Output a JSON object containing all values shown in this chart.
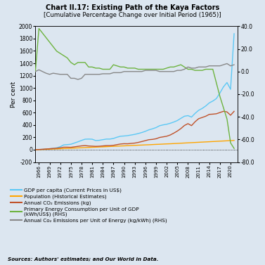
{
  "title_line1": "Chart II.17: Existing Path of the Kaya Factors",
  "title_line2": "[Cumulative Percentage Change over Initial Period (1965)]",
  "ylabel_left": "Per cent",
  "bg_color": "#dce6f0",
  "years": [
    1965,
    1966,
    1967,
    1968,
    1969,
    1970,
    1971,
    1972,
    1973,
    1974,
    1975,
    1976,
    1977,
    1978,
    1979,
    1980,
    1981,
    1982,
    1983,
    1984,
    1985,
    1986,
    1987,
    1988,
    1989,
    1990,
    1991,
    1992,
    1993,
    1994,
    1995,
    1996,
    1997,
    1998,
    1999,
    2000,
    2001,
    2002,
    2003,
    2004,
    2005,
    2006,
    2007,
    2008,
    2009,
    2010,
    2011,
    2012,
    2013,
    2014,
    2015,
    2016,
    2017,
    2018,
    2019,
    2020,
    2021
  ],
  "gdp_per_capita": [
    0,
    2,
    5,
    10,
    15,
    22,
    30,
    48,
    78,
    82,
    88,
    108,
    128,
    150,
    170,
    172,
    170,
    148,
    152,
    162,
    172,
    172,
    182,
    202,
    218,
    222,
    228,
    238,
    248,
    262,
    278,
    298,
    322,
    338,
    358,
    388,
    402,
    412,
    428,
    448,
    472,
    508,
    542,
    552,
    528,
    588,
    638,
    668,
    708,
    758,
    788,
    828,
    918,
    1018,
    1088,
    978,
    1880
  ],
  "population": [
    0,
    2,
    4,
    6,
    9,
    11,
    13,
    16,
    18,
    21,
    23,
    26,
    29,
    31,
    34,
    36,
    39,
    41,
    44,
    46,
    49,
    52,
    54,
    57,
    60,
    62,
    65,
    67,
    70,
    73,
    75,
    78,
    80,
    83,
    86,
    88,
    91,
    94,
    96,
    99,
    102,
    105,
    108,
    111,
    114,
    117,
    120,
    123,
    126,
    129,
    132,
    135,
    138,
    141,
    144,
    147,
    150
  ],
  "co2_emissions": [
    0,
    3,
    6,
    11,
    15,
    20,
    24,
    30,
    40,
    40,
    38,
    46,
    54,
    62,
    66,
    60,
    57,
    54,
    56,
    61,
    66,
    66,
    71,
    82,
    92,
    97,
    96,
    102,
    107,
    118,
    132,
    147,
    162,
    167,
    177,
    198,
    208,
    218,
    238,
    268,
    302,
    342,
    392,
    422,
    390,
    452,
    502,
    522,
    542,
    572,
    576,
    582,
    602,
    622,
    612,
    558,
    622
  ],
  "rhs_green": [
    0,
    38,
    34,
    30,
    26,
    22,
    18,
    16,
    14,
    12,
    8,
    6,
    8,
    8,
    8,
    4,
    4,
    3,
    3,
    2,
    2,
    2,
    6,
    5,
    4,
    4,
    3,
    3,
    3,
    2,
    2,
    2,
    2,
    2,
    2,
    2,
    2,
    3,
    4,
    4,
    5,
    6,
    4,
    2,
    2,
    1,
    1,
    1,
    2,
    2,
    2,
    -10,
    -22,
    -32,
    -42,
    -63,
    -68
  ],
  "rhs_gray": [
    0,
    1.5,
    0,
    -1.5,
    -2.5,
    -1.5,
    -2,
    -2.5,
    -2.5,
    -2.5,
    -6,
    -6,
    -7,
    -6,
    -2.5,
    -2.5,
    -2.5,
    -2.5,
    -2.5,
    -2,
    -2,
    -2,
    -1,
    -1,
    -1,
    0,
    0,
    0,
    0,
    0,
    0,
    1,
    1,
    1,
    1,
    0,
    0,
    0,
    0,
    0,
    1,
    1,
    2,
    4,
    3,
    3,
    4,
    4,
    4,
    5,
    5,
    5,
    5,
    6,
    7,
    5,
    6
  ],
  "colors": {
    "gdp": "#5bc8f5",
    "pop": "#ffa500",
    "co2": "#c0522a",
    "energy": "#6db33f",
    "gray": "#888888"
  },
  "ylim_left": [
    -200,
    2000
  ],
  "ylim_right": [
    -80.0,
    40.0
  ],
  "yticks_left": [
    -200,
    0,
    200,
    400,
    600,
    800,
    1000,
    1200,
    1400,
    1600,
    1800,
    2000
  ],
  "yticks_right": [
    -80.0,
    -60.0,
    -40.0,
    -20.0,
    0.0,
    20.0,
    40.0
  ],
  "sources": "Sources: Authors' estimates; and Our World in Data.",
  "legend_labels": [
    "GDP per capita (Current Prices in US$)",
    "Population (Historical Estimates)",
    "Annual CO₂ Emissions (kg)",
    "Primary Energy Consumption per Unit of GDP\n(kWh/US$) (RHS)",
    "Annual Co₂ Emissions per Unit of Energy (kg/kWh) (RHS)"
  ]
}
